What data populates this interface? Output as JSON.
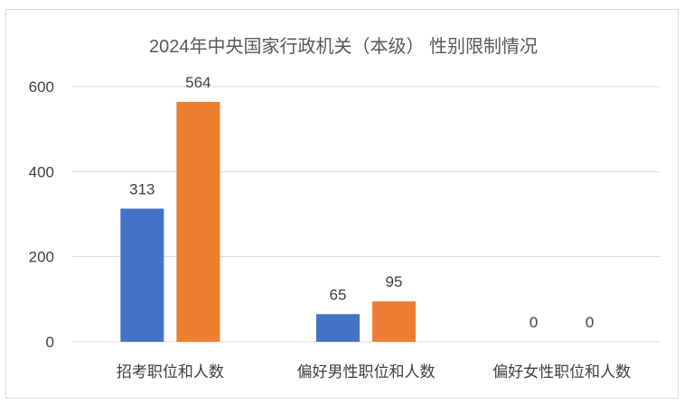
{
  "chart_data": {
    "type": "bar",
    "title": "2024年中央国家行政机关（本级） 性别限制情况",
    "categories": [
      "招考职位和人数",
      "偏好男性职位和人数",
      "偏好女性职位和人数"
    ],
    "series": [
      {
        "values": [
          313,
          65,
          0
        ],
        "color": "#4472c4"
      },
      {
        "values": [
          564,
          95,
          0
        ],
        "color": "#ed7d31"
      }
    ],
    "ylim": [
      0,
      600
    ],
    "yticks": [
      0,
      200,
      400,
      600
    ],
    "grid": true,
    "legend": "none"
  }
}
